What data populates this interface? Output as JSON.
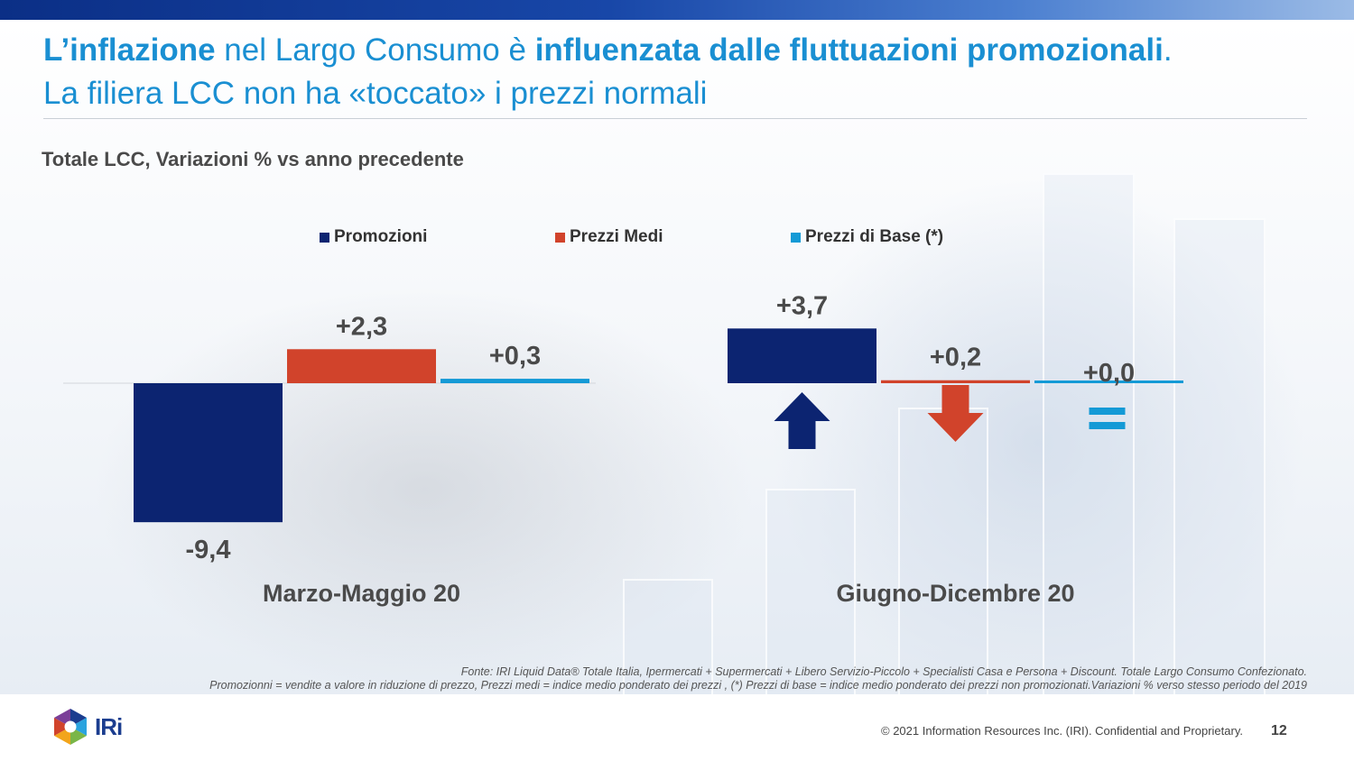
{
  "header": {
    "title_parts": [
      {
        "text": "L’inflazione",
        "bold": true
      },
      {
        "text": " nel Largo Consumo è ",
        "bold": false
      },
      {
        "text": "influenzata dalle fluttuazioni promozionali",
        "bold": true
      },
      {
        "text": ".",
        "bold": false
      }
    ],
    "title_line2": "La filiera LCC non ha «toccato» i prezzi normali",
    "subtitle": "Totale LCC, Variazioni % vs anno precedente"
  },
  "colors": {
    "promozioni": "#0c2471",
    "prezzi_medi": "#d1432b",
    "prezzi_base": "#149ad6",
    "title": "#1a8fd2",
    "label": "#4a4a4a"
  },
  "chart_data": {
    "type": "bar",
    "categories": [
      "Marzo-Maggio 20",
      "Giugno-Dicembre 20"
    ],
    "series": [
      {
        "name": "Promozioni",
        "values": [
          -9.4,
          3.7
        ],
        "labels": [
          "-9,4",
          "+3,7"
        ],
        "color": "#0c2471"
      },
      {
        "name": "Prezzi Medi",
        "values": [
          2.3,
          0.2
        ],
        "labels": [
          "+2,3",
          "+0,2"
        ],
        "color": "#d1432b"
      },
      {
        "name": "Prezzi di Base (*)",
        "values": [
          0.3,
          0.0
        ],
        "labels": [
          "+0,3",
          "+0,0"
        ],
        "color": "#149ad6"
      }
    ],
    "annotations": [
      {
        "category": "Giugno-Dicembre 20",
        "series": "Promozioni",
        "symbol": "arrow-up"
      },
      {
        "category": "Giugno-Dicembre 20",
        "series": "Prezzi Medi",
        "symbol": "arrow-down"
      },
      {
        "category": "Giugno-Dicembre 20",
        "series": "Prezzi di Base (*)",
        "symbol": "equals"
      }
    ],
    "legend_position": "top",
    "grid": false
  },
  "footnote": {
    "line1": "Fonte: IRI Liquid Data®  Totale Italia, Ipermercati + Supermercati + Libero Servizio-Piccolo + Specialisti Casa e Persona + Discount. Totale Largo Consumo Confezionato.",
    "line2": "Promozionni = vendite a valore in riduzione di prezzo, Prezzi medi = indice medio ponderato dei prezzi , (*) Prezzi di base = indice medio ponderato dei prezzi  non promozionati.Variazioni % verso stesso periodo del 2019"
  },
  "footer": {
    "logo_text": "IRi",
    "copyright": "© 2021 Information Resources Inc. (IRI). Confidential and Proprietary.",
    "page_number": "12"
  }
}
